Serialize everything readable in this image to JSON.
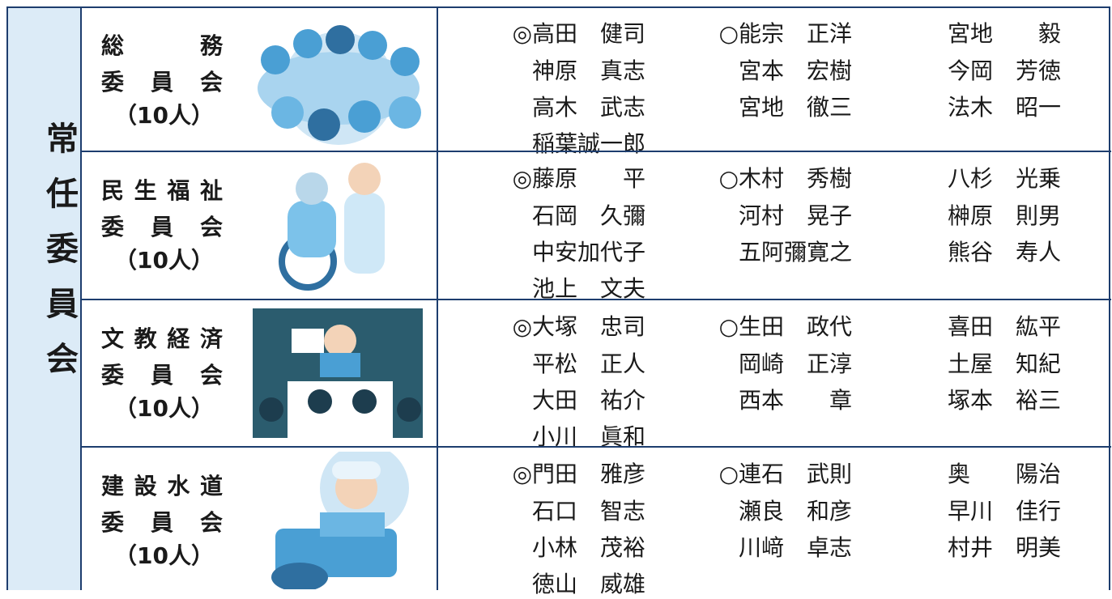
{
  "side_title": "常任委員会",
  "committees": [
    {
      "name": "総務",
      "label": "委員会",
      "count": "（10人）",
      "members": [
        [
          "◎高田　健司",
          "○能宗　正洋",
          "宮地　　毅"
        ],
        [
          "神原　真志",
          "宮本　宏樹",
          "今岡　芳徳"
        ],
        [
          "高木　武志",
          "宮地　徹三",
          "法木　昭一"
        ],
        [
          "稲葉誠一郎"
        ]
      ]
    },
    {
      "name": "民生福祉",
      "label": "委員会",
      "count": "（10人）",
      "members": [
        [
          "◎藤原　　平",
          "○木村　秀樹",
          "八杉　光乗"
        ],
        [
          "石岡　久彌",
          "河村　晃子",
          "榊原　則男"
        ],
        [
          "中安加代子",
          "五阿彌寛之",
          "熊谷　寿人"
        ],
        [
          "池上　文夫"
        ]
      ]
    },
    {
      "name": "文教経済",
      "label": "委員会",
      "count": "（10人）",
      "members": [
        [
          "◎大塚　忠司",
          "○生田　政代",
          "喜田　紘平"
        ],
        [
          "平松　正人",
          "岡崎　正淳",
          "土屋　知紀"
        ],
        [
          "大田　祐介",
          "西本　　章",
          "塚本　裕三"
        ],
        [
          "小川　眞和"
        ]
      ]
    },
    {
      "name": "建設水道",
      "label": "委員会",
      "count": "（10人）",
      "members": [
        [
          "◎門田　雅彦",
          "○連石　武則",
          "奥　　陽治"
        ],
        [
          "石口　智志",
          "瀬良　和彦",
          "早川　佳行"
        ],
        [
          "小林　茂裕",
          "川﨑　卓志",
          "村井　明美"
        ],
        [
          "徳山　威雄"
        ]
      ]
    }
  ]
}
